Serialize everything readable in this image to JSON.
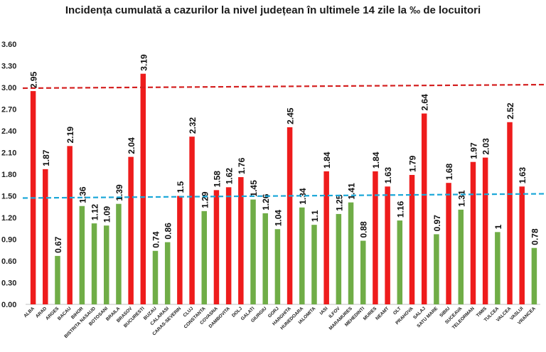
{
  "chart_data": {
    "type": "bar",
    "title": "Incidența cumulată a cazurilor la nivel județean în ultimele 14 zile la ‰ de locuitori",
    "xlabel": "",
    "ylabel": "",
    "ylim": [
      0,
      3.6
    ],
    "yticks": [
      "0.00",
      "0.30",
      "0.60",
      "0.90",
      "1.20",
      "1.50",
      "1.80",
      "2.10",
      "2.40",
      "2.70",
      "3.00",
      "3.30",
      "3.60"
    ],
    "grid": false,
    "legend": "none",
    "categories": [
      "ALBA",
      "ARAD",
      "ARGES",
      "BACAU",
      "BIHOR",
      "BISTRITA NASAUD",
      "BOTOSANI",
      "BRAILA",
      "BRASOV",
      "BUCURESTI",
      "BUZAU",
      "CALARASI",
      "CARAS-SEVERIN",
      "CLUJ",
      "CONSTANTA",
      "COVASNA",
      "DAMBOVITA",
      "DOLJ",
      "GALATI",
      "GIURGIU",
      "GORJ",
      "HARGHITA",
      "HUNEDOARA",
      "IALOMITA",
      "IASI",
      "ILFOV",
      "MARAMURES",
      "MEHEDINTI",
      "MURES",
      "NEAMT",
      "OLT",
      "PRAHOVA",
      "SALAJ",
      "SATU MARE",
      "SIBIU",
      "SUCEAVA",
      "TELEORMAN",
      "TIMIS",
      "TULCEA",
      "VALCEA",
      "VASLUI",
      "VRANCEA"
    ],
    "values": [
      2.95,
      1.87,
      0.67,
      2.19,
      1.36,
      1.12,
      1.09,
      1.39,
      2.04,
      3.19,
      0.74,
      0.86,
      1.5,
      2.32,
      1.29,
      1.58,
      1.62,
      1.76,
      1.45,
      1.26,
      1.04,
      2.45,
      1.34,
      1.1,
      1.84,
      1.25,
      1.41,
      0.88,
      1.84,
      1.63,
      1.16,
      1.79,
      2.64,
      0.97,
      1.68,
      1.31,
      1.97,
      2.03,
      1,
      2.52,
      1.63,
      0.78
    ],
    "value_labels": [
      "2.95",
      "1.87",
      "0.67",
      "2.19",
      "1.36",
      "1.12",
      "1.09",
      "1.39",
      "2.04",
      "3.19",
      "0.74",
      "0.86",
      "1.5",
      "2.32",
      "1.29",
      "1.58",
      "1.62",
      "1.76",
      "1.45",
      "1.26",
      "1.04",
      "2.45",
      "1.34",
      "1.1",
      "1.84",
      "1.25",
      "1.41",
      "0.88",
      "1.84",
      "1.63",
      "1.16",
      "1.79",
      "2.64",
      "0.97",
      "1.68",
      "1.31",
      "1.97",
      "2.03",
      "1",
      "2.52",
      "1.63",
      "0.78"
    ],
    "colors": {
      "above": "#ee1c1c",
      "below": "#70ad47",
      "threshold_high": "#d42020",
      "threshold_low": "#1aa7d8"
    },
    "thresholds": [
      3.0,
      1.5
    ]
  }
}
